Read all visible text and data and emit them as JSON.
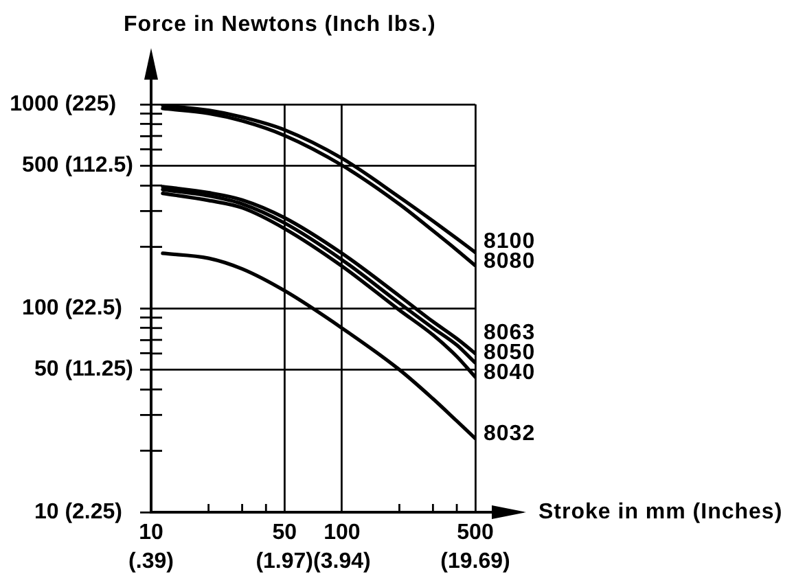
{
  "chart_data": {
    "type": "line",
    "xlabel": "Stroke in mm (Inches)",
    "ylabel": "Force in Newtons (Inch lbs.)",
    "log": "xy",
    "xlim": [
      10,
      500
    ],
    "ylim": [
      10,
      1000
    ],
    "xticks": [
      10,
      {
        "value": 20,
        "label": null
      },
      {
        "value": 30,
        "label": null
      },
      {
        "value": 40,
        "label": null
      },
      50,
      100,
      {
        "value": 200,
        "label": null
      },
      {
        "value": 300,
        "label": null
      },
      {
        "value": 400,
        "label": null
      },
      500
    ],
    "yticks": [
      10,
      {
        "value": 20,
        "label": null
      },
      {
        "value": 30,
        "label": null
      },
      {
        "value": 40,
        "label": null
      },
      50,
      {
        "value": 60,
        "label": null
      },
      {
        "value": 70,
        "label": null
      },
      {
        "value": 80,
        "label": null
      },
      {
        "value": 90,
        "label": null
      },
      100,
      {
        "value": 200,
        "label": null
      },
      {
        "value": 300,
        "label": null
      },
      {
        "value": 400,
        "label": null
      },
      500,
      {
        "value": 600,
        "label": null
      },
      {
        "value": 700,
        "label": null
      },
      {
        "value": 800,
        "label": null
      },
      {
        "value": 900,
        "label": null
      },
      1000
    ],
    "annotations": [
      "(.39)",
      "(1.97)",
      "(3.94)",
      "(19.69)",
      "(2.25)",
      "(11.25)",
      "(22.5)",
      "(112.5)",
      "(225)"
    ],
    "grid": true,
    "marker": "none",
    "line_style": "solid",
    "x": [
      11.5,
      20,
      30,
      50,
      100,
      200,
      300,
      400,
      500
    ],
    "series": [
      {
        "name": "8100",
        "color": "#000000",
        "values": [
          990,
          935,
          866,
          750,
          544,
          351,
          268,
          220,
          188
        ]
      },
      {
        "name": "8080",
        "color": "#000000",
        "values": [
          955,
          903,
          830,
          704,
          503,
          324,
          240,
          193,
          162
        ]
      },
      {
        "name": "8063",
        "color": "#000000",
        "values": [
          395,
          369,
          340,
          278,
          186,
          115,
          86,
          71,
          60
        ]
      },
      {
        "name": "8050",
        "color": "#000000",
        "values": [
          382,
          356,
          325,
          262,
          173,
          106,
          80,
          66,
          54
        ]
      },
      {
        "name": "8040",
        "color": "#000000",
        "values": [
          366,
          338,
          311,
          246,
          161,
          98,
          74,
          58,
          46
        ]
      },
      {
        "name": "8032",
        "color": "#000000",
        "values": [
          186,
          176,
          156,
          122,
          80,
          50,
          36,
          28,
          23
        ]
      }
    ]
  }
}
